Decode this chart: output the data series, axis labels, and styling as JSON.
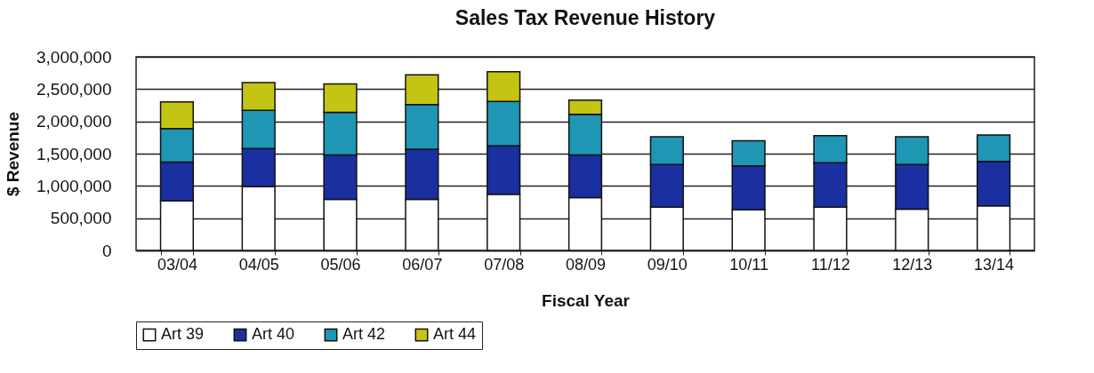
{
  "chart_data": {
    "type": "bar",
    "stacked": true,
    "title": "Sales Tax Revenue History",
    "xlabel": "Fiscal Year",
    "ylabel": "$ Revenue",
    "categories": [
      "03/04",
      "04/05",
      "05/06",
      "06/07",
      "07/08",
      "08/09",
      "09/10",
      "10/11",
      "11/12",
      "12/13",
      "13/14"
    ],
    "series": [
      {
        "name": "Art 39",
        "color": "#ffffff",
        "values": [
          770000,
          990000,
          790000,
          790000,
          870000,
          820000,
          670000,
          630000,
          670000,
          640000,
          690000
        ]
      },
      {
        "name": "Art 40",
        "color": "#1a2fa0",
        "values": [
          600000,
          590000,
          690000,
          780000,
          750000,
          660000,
          660000,
          680000,
          690000,
          690000,
          690000
        ]
      },
      {
        "name": "Art 42",
        "color": "#1e96b4",
        "values": [
          520000,
          590000,
          660000,
          690000,
          690000,
          630000,
          430000,
          390000,
          420000,
          430000,
          410000
        ]
      },
      {
        "name": "Art 44",
        "color": "#c4c414",
        "values": [
          410000,
          430000,
          440000,
          460000,
          460000,
          220000,
          null,
          null,
          null,
          null,
          null
        ]
      }
    ],
    "ylim": [
      0,
      3000000
    ],
    "yticks": [
      0,
      {
        "value": 500000,
        "label": "500,000"
      },
      {
        "value": 1000000,
        "label": "1,000,000"
      },
      {
        "value": 1500000,
        "label": "1,500,000"
      },
      {
        "value": 2000000,
        "label": "2,000,000"
      },
      {
        "value": 2500000,
        "label": "2,500,000"
      },
      {
        "value": 3000000,
        "label": "3,000,000"
      }
    ],
    "grid": "y",
    "legend": "bottom"
  }
}
